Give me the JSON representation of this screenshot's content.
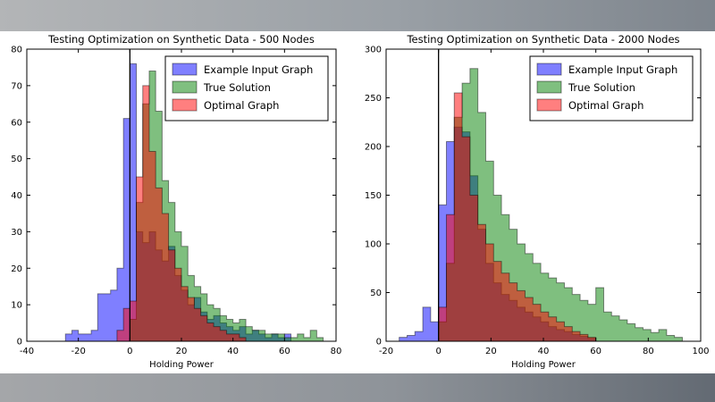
{
  "figure": {
    "background": "#ffffff"
  },
  "chart_data": [
    {
      "type": "histogram",
      "title": "Testing Optimization on Synthetic Data - 500 Nodes",
      "xlabel": "Holding Power",
      "ylabel": "",
      "xlim": [
        -40,
        80
      ],
      "ylim": [
        0,
        80
      ],
      "xticks": [
        -40,
        -20,
        0,
        20,
        40,
        60,
        80
      ],
      "yticks": [
        0,
        10,
        20,
        30,
        40,
        50,
        60,
        70,
        80
      ],
      "vline_x": 0,
      "grid": false,
      "fill_opacity": 0.5,
      "edge_color": "#000000",
      "edge_opacity": 0.45,
      "legend_position": "upper right",
      "series": [
        {
          "name": "Example Input Graph",
          "color": "#0000ff",
          "bin_start": -25,
          "bin_width": 2.5,
          "counts": [
            2,
            3,
            2,
            2,
            3,
            13,
            13,
            14,
            20,
            61,
            76,
            30,
            27,
            30,
            25,
            22,
            26,
            18,
            14,
            10,
            12,
            8,
            6,
            7,
            5,
            4,
            3,
            4,
            2,
            3,
            2,
            1,
            2,
            1,
            2
          ]
        },
        {
          "name": "True Solution",
          "color": "#008000",
          "bin_start": 0,
          "bin_width": 2.5,
          "counts": [
            6,
            38,
            65,
            74,
            63,
            44,
            38,
            30,
            26,
            18,
            15,
            13,
            10,
            9,
            7,
            6,
            5,
            6,
            4,
            3,
            3,
            2,
            2,
            2,
            1,
            1,
            2,
            1,
            3,
            1
          ]
        },
        {
          "name": "Optimal Graph",
          "color": "#ff0000",
          "bin_start": -5,
          "bin_width": 2.5,
          "counts": [
            3,
            9,
            11,
            45,
            70,
            52,
            42,
            35,
            25,
            20,
            15,
            12,
            9,
            7,
            5,
            4,
            3,
            2,
            2,
            1
          ]
        }
      ]
    },
    {
      "type": "histogram",
      "title": "Testing Optimization on Synthetic Data - 2000 Nodes",
      "xlabel": "Holding Power",
      "ylabel": "",
      "xlim": [
        -20,
        100
      ],
      "ylim": [
        0,
        300
      ],
      "xticks": [
        -20,
        0,
        20,
        40,
        60,
        80,
        100
      ],
      "yticks": [
        0,
        50,
        100,
        150,
        200,
        250,
        300
      ],
      "vline_x": 0,
      "grid": false,
      "fill_opacity": 0.5,
      "edge_color": "#000000",
      "edge_opacity": 0.45,
      "legend_position": "upper right",
      "series": [
        {
          "name": "Example Input Graph",
          "color": "#0000ff",
          "bin_start": -15,
          "bin_width": 3,
          "counts": [
            4,
            6,
            10,
            35,
            20,
            140,
            205,
            220,
            215,
            170,
            115,
            80,
            60,
            48,
            42,
            35,
            30,
            25,
            20,
            15,
            12,
            10,
            7,
            5,
            3
          ]
        },
        {
          "name": "True Solution",
          "color": "#008000",
          "bin_start": 0,
          "bin_width": 3,
          "counts": [
            20,
            80,
            230,
            265,
            280,
            235,
            185,
            150,
            130,
            115,
            100,
            90,
            80,
            70,
            65,
            60,
            55,
            48,
            42,
            38,
            55,
            30,
            26,
            22,
            18,
            14,
            12,
            9,
            12,
            6,
            4
          ]
        },
        {
          "name": "Optimal Graph",
          "color": "#ff0000",
          "bin_start": 0,
          "bin_width": 3,
          "counts": [
            35,
            130,
            255,
            210,
            150,
            120,
            100,
            82,
            70,
            60,
            52,
            45,
            38,
            30,
            25,
            20,
            15,
            10,
            7,
            4
          ]
        }
      ]
    }
  ]
}
